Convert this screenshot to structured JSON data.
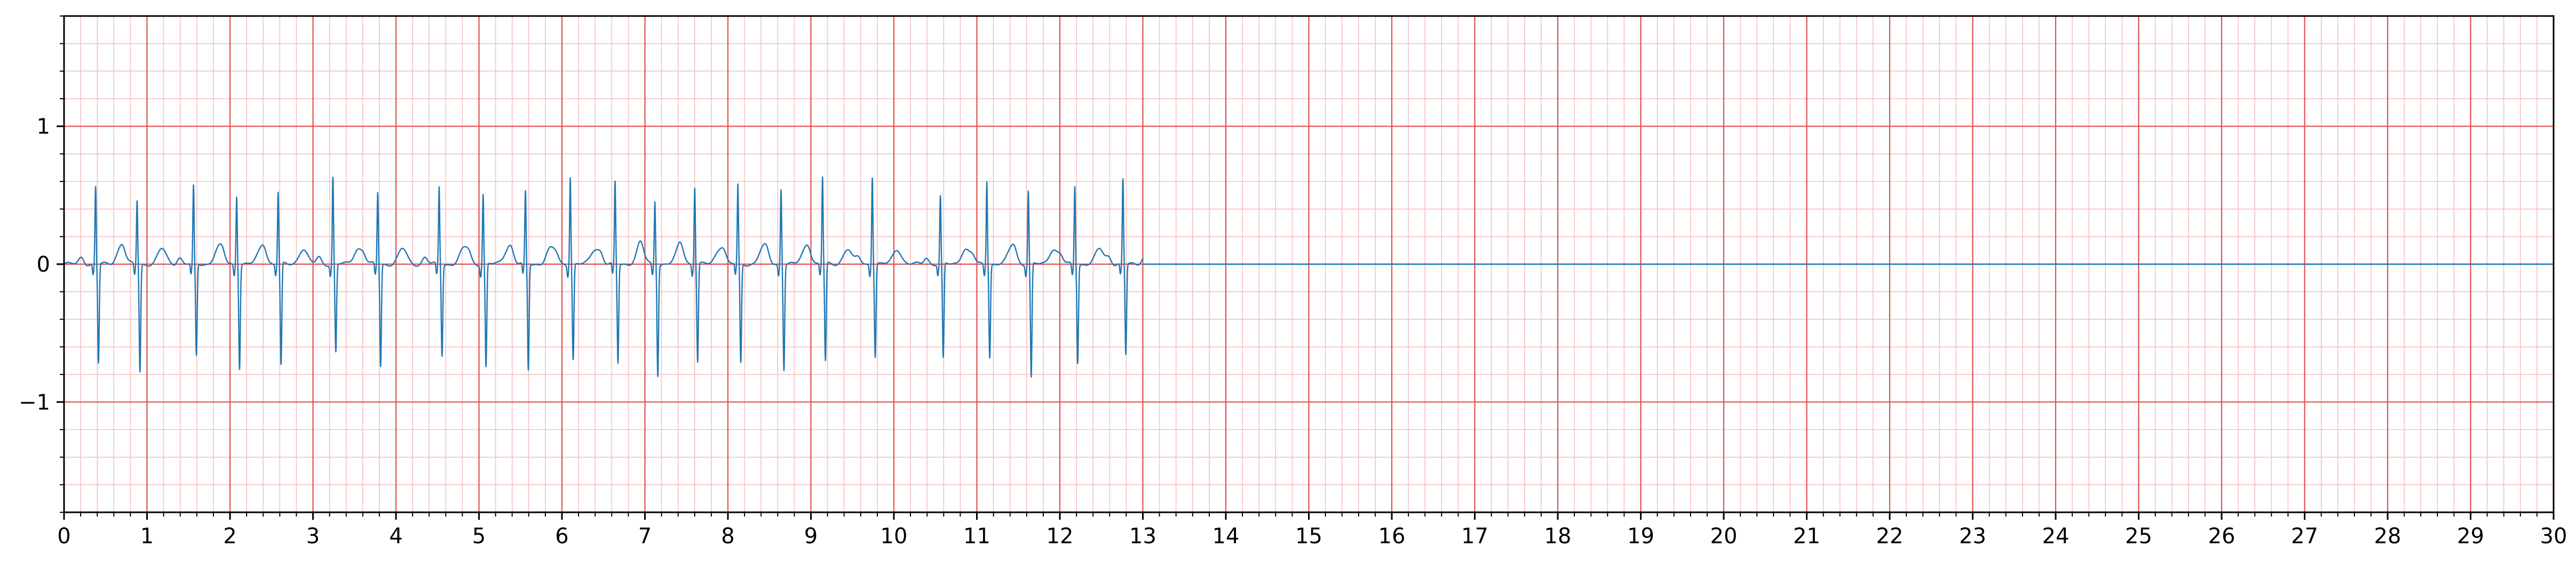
{
  "chart_data": {
    "type": "line",
    "title": "",
    "xlabel": "",
    "ylabel": "",
    "xlim": [
      0,
      30
    ],
    "ylim": [
      -1.8,
      1.8
    ],
    "x_ticks": [
      "0",
      "1",
      "2",
      "3",
      "4",
      "5",
      "6",
      "7",
      "8",
      "9",
      "10",
      "11",
      "12",
      "13",
      "14",
      "15",
      "16",
      "17",
      "18",
      "19",
      "20",
      "21",
      "22",
      "23",
      "24",
      "25",
      "26",
      "27",
      "28",
      "29",
      "30"
    ],
    "y_ticks": [
      {
        "value": 1,
        "label": "1"
      },
      {
        "value": 0,
        "label": "0"
      },
      {
        "value": -1,
        "label": "−1"
      }
    ],
    "grid": {
      "major_x_step": 1,
      "minor_x_step": 0.2,
      "major_y_step": 1,
      "minor_y_step": 0.2,
      "major_color": "#e05050",
      "minor_color": "#f7c0c0"
    },
    "line_color": "#1f77b4",
    "signal_end": 13.0,
    "beats": [
      {
        "t": 0.38,
        "r": 0.56,
        "s": -0.72
      },
      {
        "t": 0.88,
        "r": 0.46,
        "s": -0.78
      },
      {
        "t": 1.56,
        "r": 0.56,
        "s": -0.67
      },
      {
        "t": 2.08,
        "r": 0.5,
        "s": -0.75
      },
      {
        "t": 2.58,
        "r": 0.52,
        "s": -0.74
      },
      {
        "t": 3.24,
        "r": 0.63,
        "s": -0.64
      },
      {
        "t": 3.78,
        "r": 0.52,
        "s": -0.74
      },
      {
        "t": 4.52,
        "r": 0.56,
        "s": -0.66
      },
      {
        "t": 5.05,
        "r": 0.51,
        "s": -0.75
      },
      {
        "t": 5.56,
        "r": 0.52,
        "s": -0.77
      },
      {
        "t": 6.1,
        "r": 0.64,
        "s": -0.69
      },
      {
        "t": 6.64,
        "r": 0.59,
        "s": -0.72
      },
      {
        "t": 7.12,
        "r": 0.46,
        "s": -0.8
      },
      {
        "t": 7.6,
        "r": 0.56,
        "s": -0.71
      },
      {
        "t": 8.12,
        "r": 0.57,
        "s": -0.72
      },
      {
        "t": 8.64,
        "r": 0.55,
        "s": -0.76
      },
      {
        "t": 9.14,
        "r": 0.63,
        "s": -0.71
      },
      {
        "t": 9.74,
        "r": 0.64,
        "s": -0.67
      },
      {
        "t": 10.56,
        "r": 0.49,
        "s": -0.69
      },
      {
        "t": 11.12,
        "r": 0.61,
        "s": -0.67
      },
      {
        "t": 11.62,
        "r": 0.53,
        "s": -0.83
      },
      {
        "t": 12.18,
        "r": 0.57,
        "s": -0.71
      },
      {
        "t": 12.76,
        "r": 0.61,
        "s": -0.66
      }
    ]
  }
}
